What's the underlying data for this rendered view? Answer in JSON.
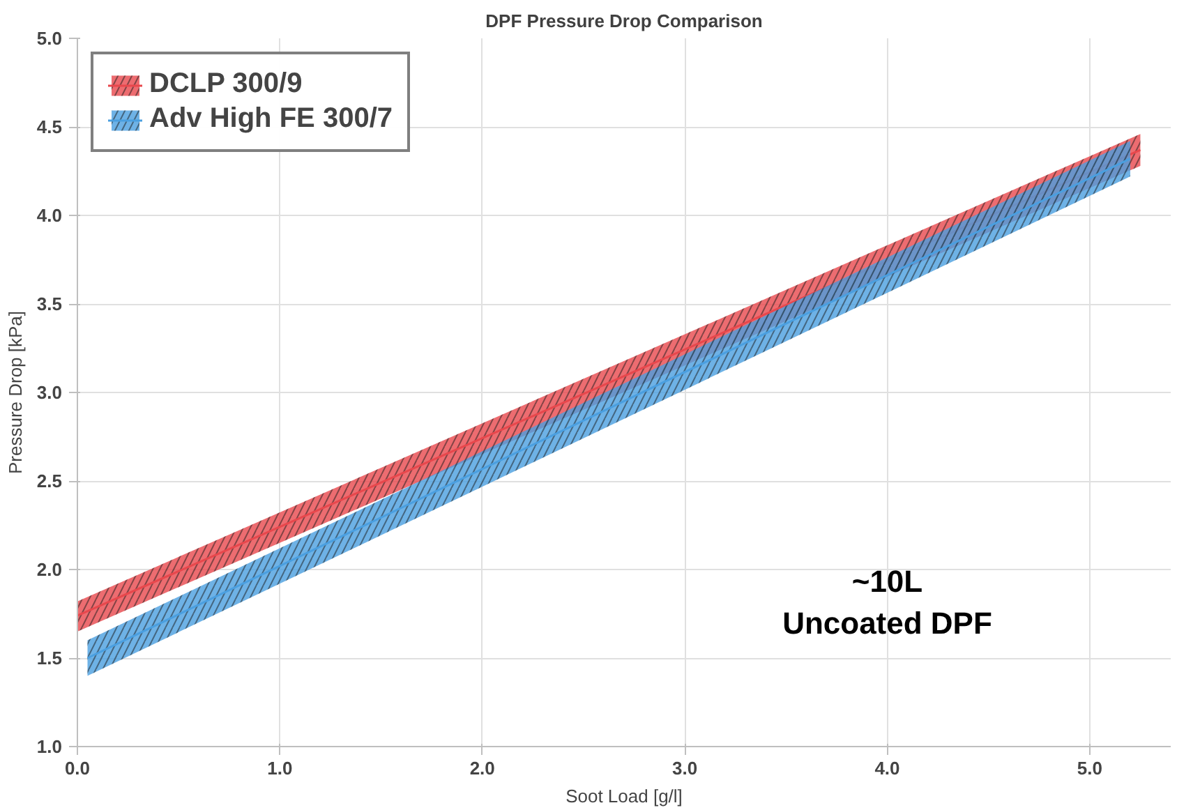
{
  "chart_data": {
    "type": "line",
    "title": "DPF Pressure Drop Comparison",
    "xlabel": "Soot Load [g/l]",
    "ylabel": "Pressure Drop [kPa]",
    "series": [
      {
        "name": "DCLP 300/9",
        "color": "#e8474c",
        "x": [
          0,
          5.25
        ],
        "values": [
          1.74,
          4.37
        ],
        "lower": [
          1.65,
          4.28
        ],
        "upper": [
          1.82,
          4.46
        ]
      },
      {
        "name": "Adv High FE 300/7",
        "color": "#4a9fe0",
        "x": [
          0.05,
          5.2
        ],
        "values": [
          1.5,
          4.32
        ],
        "lower": [
          1.4,
          4.22
        ],
        "upper": [
          1.6,
          4.42
        ]
      }
    ],
    "xlim": [
      0,
      5.4
    ],
    "ylim": [
      1,
      5
    ],
    "xticks": [
      {
        "value": 0,
        "label": "0.0"
      },
      {
        "value": 1,
        "label": "1.0"
      },
      {
        "value": 2,
        "label": "2.0"
      },
      {
        "value": 3,
        "label": "3.0"
      },
      {
        "value": 4,
        "label": "4.0"
      },
      {
        "value": 5,
        "label": "5.0"
      }
    ],
    "yticks": [
      {
        "value": 1,
        "label": "1.0"
      },
      {
        "value": 1.5,
        "label": "1.5"
      },
      {
        "value": 2,
        "label": "2.0"
      },
      {
        "value": 2.5,
        "label": "2.5"
      },
      {
        "value": 3,
        "label": "3.0"
      },
      {
        "value": 3.5,
        "label": "3.5"
      },
      {
        "value": 4,
        "label": "4.0"
      },
      {
        "value": 4.5,
        "label": "4.5"
      },
      {
        "value": 5,
        "label": "5.0"
      }
    ],
    "annotations": [
      "~10L\nUncoated DPF"
    ],
    "grid": true,
    "legend": "top left"
  }
}
